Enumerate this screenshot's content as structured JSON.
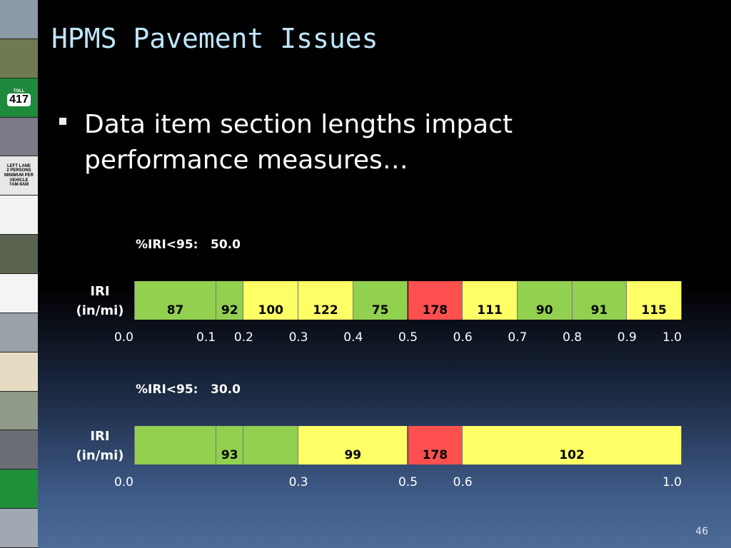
{
  "slide": {
    "title": "HPMS Pavement Issues",
    "bullet": "Data item section lengths impact performance measures…",
    "page_number": "46"
  },
  "sidebar_tiles": [
    {
      "name": "highway-interchange-photo",
      "color": "#8a9aa6"
    },
    {
      "name": "road-centerline-photo",
      "color": "#6f7a52"
    },
    {
      "name": "toll-417-sign",
      "color": "#1e8a3c",
      "text_top": "TOLL",
      "text_main": "417"
    },
    {
      "name": "roundabout-aerial-photo",
      "color": "#7c7a86"
    },
    {
      "name": "hov-lane-sign",
      "color": "#e8e8e8",
      "text_top": "LEFT LANE",
      "text_main": "2 PERSONS MINIMUM PER VEHICLE",
      "text_bottom": "7AM-9AM"
    },
    {
      "name": "lane-diagram",
      "color": "#f2f2f2"
    },
    {
      "name": "road-aerial-photo",
      "color": "#5a6350"
    },
    {
      "name": "intersection-diagram",
      "color": "#f4f4f4"
    },
    {
      "name": "overpass-photo",
      "color": "#9aa2a8"
    },
    {
      "name": "map-tile",
      "color": "#e6dcc4"
    },
    {
      "name": "road-traffic-photo",
      "color": "#8f9a88"
    },
    {
      "name": "road-photo",
      "color": "#6a6e74"
    },
    {
      "name": "green-sign",
      "color": "#1f8f3a"
    },
    {
      "name": "highway-traffic-photo",
      "color": "#a0a8b2"
    }
  ],
  "chart_data": [
    {
      "type": "bar",
      "stat_label": "%IRI<95:",
      "stat_value": "50.0",
      "row_label": [
        "IRI",
        "(in/mi)"
      ],
      "segments": [
        {
          "start": 0.0,
          "end": 0.15,
          "value": "87",
          "color": "#92d050"
        },
        {
          "start": 0.15,
          "end": 0.2,
          "value": "92",
          "color": "#92d050"
        },
        {
          "start": 0.2,
          "end": 0.3,
          "value": "100",
          "color": "#ffff66"
        },
        {
          "start": 0.3,
          "end": 0.4,
          "value": "122",
          "color": "#ffff66"
        },
        {
          "start": 0.4,
          "end": 0.5,
          "value": "75",
          "color": "#92d050"
        },
        {
          "start": 0.5,
          "end": 0.6,
          "value": "178",
          "color": "#ff5050"
        },
        {
          "start": 0.6,
          "end": 0.7,
          "value": "111",
          "color": "#ffff66"
        },
        {
          "start": 0.7,
          "end": 0.8,
          "value": "90",
          "color": "#92d050"
        },
        {
          "start": 0.8,
          "end": 0.9,
          "value": "91",
          "color": "#92d050"
        },
        {
          "start": 0.9,
          "end": 1.0,
          "value": "115",
          "color": "#ffff66"
        }
      ],
      "ticks": [
        {
          "x": 0.0,
          "label": "0.0",
          "anchor": "end"
        },
        {
          "x": 0.15,
          "label": "0.1",
          "anchor": "end"
        },
        {
          "x": 0.2,
          "label": "0.2",
          "anchor": "mid"
        },
        {
          "x": 0.3,
          "label": "0.3",
          "anchor": "mid"
        },
        {
          "x": 0.4,
          "label": "0.4",
          "anchor": "mid"
        },
        {
          "x": 0.5,
          "label": "0.5",
          "anchor": "mid"
        },
        {
          "x": 0.6,
          "label": "0.6",
          "anchor": "mid"
        },
        {
          "x": 0.7,
          "label": "0.7",
          "anchor": "mid"
        },
        {
          "x": 0.8,
          "label": "0.8",
          "anchor": "mid"
        },
        {
          "x": 0.9,
          "label": "0.9",
          "anchor": "mid"
        },
        {
          "x": 1.0,
          "label": "1.0",
          "anchor": "start"
        }
      ]
    },
    {
      "type": "bar",
      "stat_label": "%IRI<95:",
      "stat_value": "30.0",
      "row_label": [
        "IRI",
        "(in/mi)"
      ],
      "segments": [
        {
          "start": 0.0,
          "end": 0.15,
          "value": "",
          "color": "#92d050"
        },
        {
          "start": 0.15,
          "end": 0.2,
          "value": "93",
          "color": "#92d050"
        },
        {
          "start": 0.2,
          "end": 0.3,
          "value": "",
          "color": "#92d050"
        },
        {
          "start": 0.3,
          "end": 0.5,
          "value": "99",
          "color": "#ffff66"
        },
        {
          "start": 0.5,
          "end": 0.6,
          "value": "178",
          "color": "#ff5050"
        },
        {
          "start": 0.6,
          "end": 1.0,
          "value": "102",
          "color": "#ffff66"
        }
      ],
      "ticks": [
        {
          "x": 0.0,
          "label": "0.0",
          "anchor": "end"
        },
        {
          "x": 0.3,
          "label": "0.3",
          "anchor": "mid"
        },
        {
          "x": 0.5,
          "label": "0.5",
          "anchor": "mid"
        },
        {
          "x": 0.6,
          "label": "0.6",
          "anchor": "mid"
        },
        {
          "x": 1.0,
          "label": "1.0",
          "anchor": "start"
        }
      ]
    }
  ]
}
